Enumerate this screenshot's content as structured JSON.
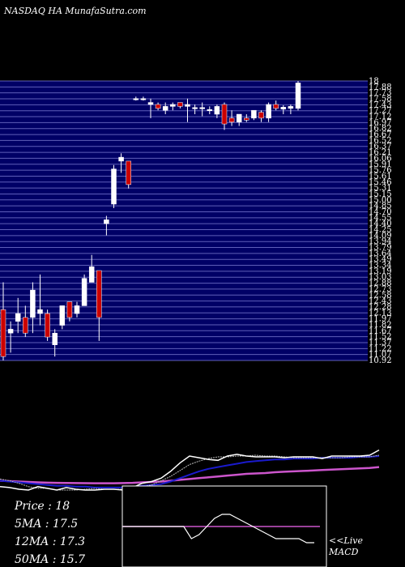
{
  "header": {
    "title": "NASDAQ HA MunafaSutra.com"
  },
  "colors": {
    "background": "#000000",
    "band": "#000066",
    "band_line": "#5f5fb8",
    "candle_up": "#ffffff",
    "candle_down": "#cc0000",
    "price_line": "#ffffff",
    "ma5": "#bbbbbb",
    "ma12": "#1a1acc",
    "ma50": "#cc55cc",
    "macd_line": "#ffffff",
    "macd_signal": "#cc55cc",
    "macd_box": "#ffffff"
  },
  "legend": {
    "price": "Price  : 18",
    "ma5": "5MA  : 17.5",
    "ma12": "12MA : 17.3",
    "ma50": "50MA : 15.7"
  },
  "macd": {
    "label": "<<Live MACD",
    "line1": "<<Live",
    "line2": "MACD"
  },
  "chart_data": {
    "type": "candlestick",
    "title": "NASDAQ HA MunafaSutra.com",
    "ylim": [
      10.9,
      18.05
    ],
    "ytick_labels": [
      "18",
      "17.88",
      "17.73",
      "17.58",
      "17.43",
      "17.27",
      "17.12",
      "16.97",
      "16.82",
      "16.67",
      "16.52",
      "16.37",
      "16.21",
      "16.06",
      "15.91",
      "15.76",
      "15.61",
      "15.46",
      "15.31",
      "15.15",
      "15.00",
      "14.85",
      "14.70",
      "14.55",
      "14.40",
      "14.25",
      "14.09",
      "13.94",
      "13.79",
      "13.64",
      "13.49",
      "13.34",
      "13.19",
      "13.03",
      "12.88",
      "12.73",
      "12.58",
      "12.43",
      "12.28",
      "12.13",
      "11.97",
      "11.82",
      "11.67",
      "11.52",
      "11.37",
      "11.22",
      "11.07",
      "10.92"
    ],
    "candles": [
      {
        "o": 12.2,
        "h": 12.9,
        "l": 10.9,
        "c": 11.0
      },
      {
        "o": 11.6,
        "h": 11.9,
        "l": 11.1,
        "c": 11.7
      },
      {
        "o": 11.9,
        "h": 12.5,
        "l": 11.6,
        "c": 12.1
      },
      {
        "o": 12.0,
        "h": 12.3,
        "l": 11.5,
        "c": 11.6
      },
      {
        "o": 12.0,
        "h": 12.9,
        "l": 11.6,
        "c": 12.7
      },
      {
        "o": 12.1,
        "h": 13.1,
        "l": 11.8,
        "c": 12.2
      },
      {
        "o": 12.1,
        "h": 12.2,
        "l": 11.4,
        "c": 11.5
      },
      {
        "o": 11.3,
        "h": 11.7,
        "l": 11.0,
        "c": 11.6
      },
      {
        "o": 11.8,
        "h": 12.3,
        "l": 11.7,
        "c": 12.3
      },
      {
        "o": 12.4,
        "h": 12.4,
        "l": 11.9,
        "c": 12.0
      },
      {
        "o": 12.1,
        "h": 12.4,
        "l": 12.0,
        "c": 12.3
      },
      {
        "o": 12.3,
        "h": 13.1,
        "l": 12.3,
        "c": 13.0
      },
      {
        "o": 12.9,
        "h": 13.6,
        "l": 12.9,
        "c": 13.3
      },
      {
        "o": 13.2,
        "h": 13.2,
        "l": 11.4,
        "c": 12.0
      },
      {
        "o": 14.4,
        "h": 14.6,
        "l": 14.1,
        "c": 14.5
      },
      {
        "o": 14.9,
        "h": 15.9,
        "l": 14.8,
        "c": 15.8
      },
      {
        "o": 16.0,
        "h": 16.2,
        "l": 15.7,
        "c": 16.1
      },
      {
        "o": 16.0,
        "h": 16.0,
        "l": 15.3,
        "c": 15.4
      },
      {
        "o": 17.6,
        "h": 17.65,
        "l": 17.55,
        "c": 17.6
      },
      {
        "o": 17.6,
        "h": 17.65,
        "l": 17.55,
        "c": 17.6
      },
      {
        "o": 17.45,
        "h": 17.6,
        "l": 17.1,
        "c": 17.5
      },
      {
        "o": 17.45,
        "h": 17.5,
        "l": 17.3,
        "c": 17.35
      },
      {
        "o": 17.3,
        "h": 17.5,
        "l": 17.2,
        "c": 17.4
      },
      {
        "o": 17.4,
        "h": 17.5,
        "l": 17.3,
        "c": 17.45
      },
      {
        "o": 17.5,
        "h": 17.5,
        "l": 17.35,
        "c": 17.4
      },
      {
        "o": 17.4,
        "h": 17.6,
        "l": 17.0,
        "c": 17.45
      },
      {
        "o": 17.35,
        "h": 17.45,
        "l": 17.2,
        "c": 17.37
      },
      {
        "o": 17.35,
        "h": 17.5,
        "l": 17.15,
        "c": 17.37
      },
      {
        "o": 17.3,
        "h": 17.4,
        "l": 17.2,
        "c": 17.32
      },
      {
        "o": 17.2,
        "h": 17.45,
        "l": 17.1,
        "c": 17.4
      },
      {
        "o": 17.45,
        "h": 17.5,
        "l": 16.8,
        "c": 16.95
      },
      {
        "o": 17.1,
        "h": 17.3,
        "l": 16.9,
        "c": 17.0
      },
      {
        "o": 17.0,
        "h": 17.2,
        "l": 16.9,
        "c": 17.2
      },
      {
        "o": 17.1,
        "h": 17.2,
        "l": 17.0,
        "c": 17.05
      },
      {
        "o": 17.1,
        "h": 17.3,
        "l": 17.05,
        "c": 17.3
      },
      {
        "o": 17.25,
        "h": 17.3,
        "l": 17.0,
        "c": 17.1
      },
      {
        "o": 17.1,
        "h": 17.5,
        "l": 17.0,
        "c": 17.45
      },
      {
        "o": 17.45,
        "h": 17.55,
        "l": 17.3,
        "c": 17.35
      },
      {
        "o": 17.33,
        "h": 17.43,
        "l": 17.2,
        "c": 17.38
      },
      {
        "o": 17.35,
        "h": 17.45,
        "l": 17.2,
        "c": 17.4
      },
      {
        "o": 17.35,
        "h": 18.05,
        "l": 17.3,
        "c": 18.0
      }
    ],
    "indicator_scale": [
      0,
      100
    ],
    "price_line": [
      4,
      3,
      1,
      0,
      4,
      2,
      0,
      3,
      1,
      0,
      0,
      1,
      1,
      0,
      3,
      8,
      10,
      14,
      22,
      32,
      40,
      38,
      36,
      35,
      40,
      42,
      40,
      39,
      39,
      39,
      38,
      39,
      39,
      39,
      37,
      40,
      40,
      40,
      40,
      41,
      47
    ],
    "ma5": [
      13,
      11,
      8,
      4,
      2,
      2,
      0,
      0,
      0,
      1,
      2,
      1,
      1,
      1,
      3,
      4,
      6,
      11,
      16,
      23,
      30,
      34,
      37,
      39,
      39,
      40,
      40,
      41,
      40,
      40,
      39,
      38,
      38,
      38,
      38,
      38,
      38,
      39,
      39,
      39,
      41
    ],
    "ma12": [
      11,
      10,
      9,
      8,
      7,
      6,
      5,
      5,
      4,
      4,
      3,
      3,
      3,
      3,
      4,
      5,
      6,
      7,
      10,
      14,
      18,
      22,
      25,
      27,
      29,
      31,
      33,
      34,
      35,
      36,
      36,
      37,
      37,
      37,
      38,
      38,
      38,
      38,
      39,
      39,
      40
    ],
    "ma50": [
      11,
      10.5,
      10,
      9.5,
      9,
      8.7,
      8.5,
      8.3,
      8.2,
      8.1,
      8,
      8,
      8,
      8.2,
      8.5,
      9,
      9.5,
      10,
      11,
      12,
      13,
      14,
      15,
      16,
      17,
      18,
      19,
      19.5,
      20,
      21,
      21.5,
      22,
      22.5,
      23,
      23.5,
      24,
      24.5,
      25,
      25.5,
      26,
      27
    ],
    "macd_scale": [
      -10,
      10
    ],
    "macd_line": [
      0,
      0,
      0,
      0,
      0,
      0,
      0,
      0,
      0,
      -3,
      -2,
      0,
      2,
      3,
      3,
      2,
      1,
      0,
      -1,
      -2,
      -3,
      -3,
      -3,
      -3,
      -4,
      -4
    ],
    "macd_signal": [
      0,
      0,
      0,
      0,
      0,
      0,
      0,
      0,
      0,
      0,
      0,
      0,
      0,
      0,
      0,
      0,
      0,
      0,
      0,
      0,
      0,
      0,
      0,
      0,
      0,
      0
    ]
  }
}
